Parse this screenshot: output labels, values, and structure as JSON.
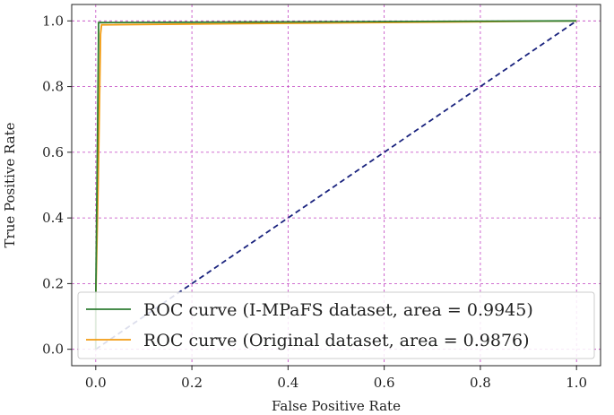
{
  "chart_data": {
    "type": "line",
    "title": "",
    "xlabel": "False Positive Rate",
    "ylabel": "True Positive Rate",
    "xlim": [
      -0.05,
      1.05
    ],
    "ylim": [
      -0.05,
      1.05
    ],
    "xticks": [
      "0.0",
      "0.2",
      "0.4",
      "0.6",
      "0.8",
      "1.0"
    ],
    "yticks": [
      "0.0",
      "0.2",
      "0.4",
      "0.6",
      "0.8",
      "1.0"
    ],
    "grid": true,
    "grid_style": "dashed",
    "grid_color": "#c040c0",
    "legend_position": "lower right",
    "series": [
      {
        "name": "ROC curve (I-MPaFS dataset, area = 0.9945)",
        "color": "#2e7d32",
        "style": "solid",
        "x": [
          0.0,
          0.0,
          0.003,
          0.006,
          0.006,
          1.0
        ],
        "y": [
          0.0,
          0.15,
          0.55,
          0.97,
          0.995,
          1.0
        ]
      },
      {
        "name": "ROC curve (Original dataset, area = 0.9876)",
        "color": "#f39c12",
        "style": "solid",
        "x": [
          0.0,
          0.0,
          0.005,
          0.01,
          0.012,
          1.0
        ],
        "y": [
          0.0,
          0.15,
          0.5,
          0.96,
          0.988,
          1.0
        ]
      },
      {
        "color": "#1a237e",
        "style": "dashed",
        "x": [
          0.0,
          1.0
        ],
        "y": [
          0.0,
          1.0
        ]
      }
    ]
  }
}
